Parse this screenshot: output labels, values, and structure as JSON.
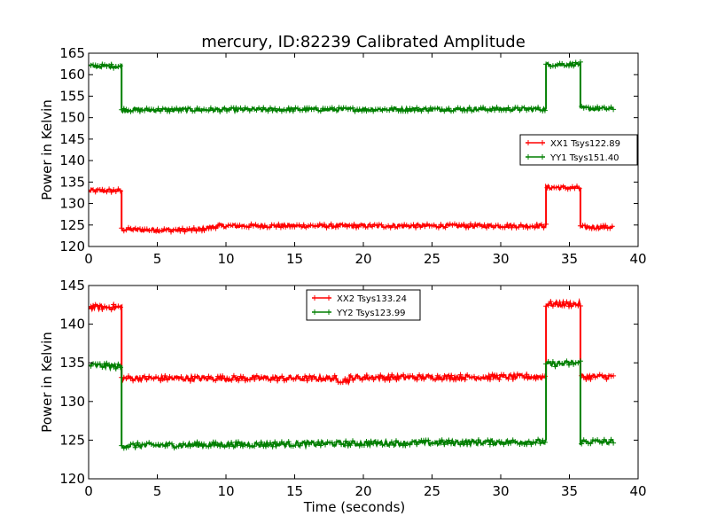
{
  "figure": {
    "title": "mercury, ID:82239 Calibrated Amplitude"
  },
  "colors": {
    "red": "#ff0000",
    "green": "#007f00"
  },
  "chart_data": [
    {
      "type": "line",
      "title": "mercury, ID:82239 Calibrated Amplitude",
      "xlabel": "",
      "ylabel": "Power in Kelvin",
      "xlim": [
        0,
        40
      ],
      "ylim": [
        120,
        165
      ],
      "xticks": [
        0,
        5,
        10,
        15,
        20,
        25,
        30,
        35,
        40
      ],
      "yticks": [
        120,
        125,
        130,
        135,
        140,
        145,
        150,
        155,
        160,
        165
      ],
      "grid": false,
      "legend_position": "center-right",
      "series": [
        {
          "name": "XX1 Tsys122.89",
          "color": "#ff0000",
          "noise": 0.45,
          "segments": [
            {
              "x_start": 0,
              "x_end": 2.4,
              "y_start": 133.0,
              "y_end": 133.0
            },
            {
              "x_start": 2.4,
              "x_end": 5,
              "y_start": 124.0,
              "y_end": 123.8
            },
            {
              "x_start": 5,
              "x_end": 8,
              "y_start": 123.8,
              "y_end": 123.9
            },
            {
              "x_start": 8,
              "x_end": 9.5,
              "y_start": 123.9,
              "y_end": 124.8
            },
            {
              "x_start": 9.5,
              "x_end": 33.3,
              "y_start": 124.8,
              "y_end": 124.8
            },
            {
              "x_start": 33.3,
              "x_end": 35.8,
              "y_start": 133.8,
              "y_end": 133.6
            },
            {
              "x_start": 35.8,
              "x_end": 38.2,
              "y_start": 124.5,
              "y_end": 124.5
            }
          ]
        },
        {
          "name": "YY1 Tsys151.40",
          "color": "#007f00",
          "noise": 0.45,
          "segments": [
            {
              "x_start": 0,
              "x_end": 2.4,
              "y_start": 162.0,
              "y_end": 162.0
            },
            {
              "x_start": 2.4,
              "x_end": 33.3,
              "y_start": 151.8,
              "y_end": 152.0
            },
            {
              "x_start": 33.3,
              "x_end": 35.8,
              "y_start": 162.3,
              "y_end": 162.5
            },
            {
              "x_start": 35.8,
              "x_end": 38.2,
              "y_start": 152.2,
              "y_end": 152.0
            }
          ]
        }
      ]
    },
    {
      "type": "line",
      "title": "",
      "xlabel": "Time (seconds)",
      "ylabel": "Power in Kelvin",
      "xlim": [
        0,
        40
      ],
      "ylim": [
        120,
        145
      ],
      "xticks": [
        0,
        5,
        10,
        15,
        20,
        25,
        30,
        35,
        40
      ],
      "yticks": [
        120,
        125,
        130,
        135,
        140,
        145
      ],
      "grid": false,
      "legend_position": "upper-center",
      "series": [
        {
          "name": "XX2 Tsys133.24",
          "color": "#ff0000",
          "noise": 0.35,
          "segments": [
            {
              "x_start": 0,
              "x_end": 2.4,
              "y_start": 142.2,
              "y_end": 142.2
            },
            {
              "x_start": 2.4,
              "x_end": 18,
              "y_start": 133.0,
              "y_end": 133.0
            },
            {
              "x_start": 18,
              "x_end": 19,
              "y_start": 132.8,
              "y_end": 132.7
            },
            {
              "x_start": 19,
              "x_end": 33.3,
              "y_start": 133.1,
              "y_end": 133.2
            },
            {
              "x_start": 33.3,
              "x_end": 35.8,
              "y_start": 142.6,
              "y_end": 142.6
            },
            {
              "x_start": 35.8,
              "x_end": 38.2,
              "y_start": 133.2,
              "y_end": 133.2
            }
          ]
        },
        {
          "name": "YY2 Tsys123.99",
          "color": "#007f00",
          "noise": 0.35,
          "segments": [
            {
              "x_start": 0,
              "x_end": 2.4,
              "y_start": 134.7,
              "y_end": 134.5
            },
            {
              "x_start": 2.4,
              "x_end": 33.3,
              "y_start": 124.3,
              "y_end": 124.8
            },
            {
              "x_start": 33.3,
              "x_end": 35.8,
              "y_start": 134.8,
              "y_end": 135.0
            },
            {
              "x_start": 35.8,
              "x_end": 38.2,
              "y_start": 124.8,
              "y_end": 124.8
            }
          ]
        }
      ]
    }
  ]
}
